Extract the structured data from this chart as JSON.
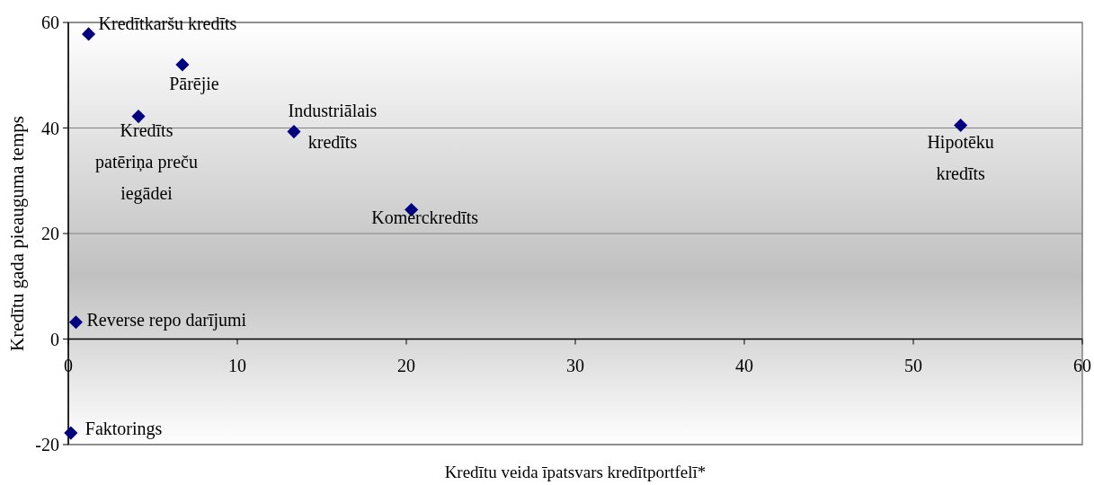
{
  "chart_data": {
    "type": "scatter",
    "xlabel": "Kredītu veida īpatsvars kredītportfelī*",
    "ylabel": "Kredītu gada pieauguma temps",
    "series": [
      {
        "color": "#000080",
        "x": [
          1.2,
          6.75,
          4.15,
          13.35,
          52.8,
          20.3,
          0.45,
          0.15
        ],
        "values": [
          57.8,
          52,
          42.2,
          39.3,
          40.5,
          24.5,
          3.2,
          -17.8
        ]
      }
    ],
    "marker": "diamond",
    "xlim": [
      0,
      60
    ],
    "xticks": [
      0,
      10,
      20,
      30,
      40,
      50,
      60
    ],
    "ylim": [
      -20,
      60
    ],
    "yticks": [
      -20,
      0,
      20,
      40,
      60
    ],
    "grid": "y",
    "annotations": [
      {
        "text": "Kredītkaršu kredīts",
        "x": 1.2,
        "y": 57.8
      },
      {
        "text": "Pārējie",
        "x": 6.75,
        "y": 52
      },
      {
        "text": "Kredīts patēriņa preču iegādei",
        "x": 4.15,
        "y": 42.2
      },
      {
        "text": "Industriālais kredīts",
        "x": 13.35,
        "y": 39.3
      },
      {
        "text": "Hipotēku kredīts",
        "x": 52.8,
        "y": 40.5
      },
      {
        "text": "Komerckredīts",
        "x": 20.3,
        "y": 24.5
      },
      {
        "text": "Reverse repo darījumi",
        "x": 0.45,
        "y": 3.2
      },
      {
        "text": "Faktorings",
        "x": 0.15,
        "y": -17.8
      }
    ]
  }
}
